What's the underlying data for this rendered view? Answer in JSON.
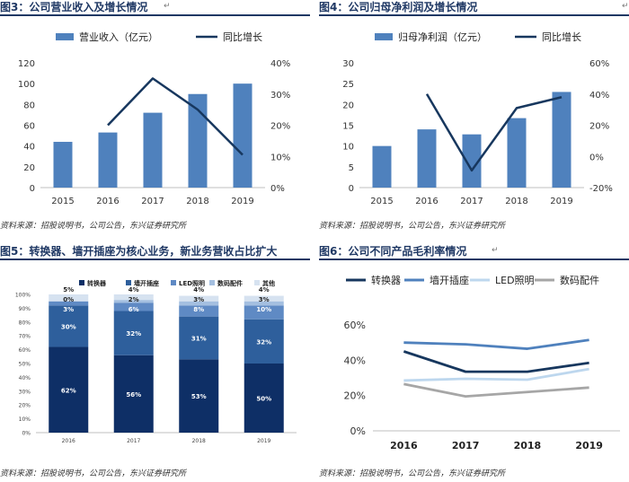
{
  "return_mark": "↵",
  "colors": {
    "title": "#1f3864",
    "bar": "#4f81bd",
    "line_dark": "#17375e",
    "stack": [
      "#0e2f66",
      "#2e5f9c",
      "#5f8ac4",
      "#a4bfe0",
      "#d6e2f0"
    ],
    "g_conv": "#17375e",
    "g_socket": "#4f81bd",
    "g_led": "#bdd7ee",
    "g_digital": "#a6a6a6"
  },
  "charts": {
    "fig3": {
      "title": "图3：公司营业收入及增长情况",
      "source": "资料来源：招股说明书，公司公告，东兴证券研究所",
      "legend_bar": "营业收入（亿元）",
      "legend_line": "同比增长",
      "left_ticks": [
        "0",
        "20",
        "40",
        "60",
        "80",
        "100",
        "120"
      ],
      "right_ticks": [
        "0%",
        "10%",
        "20%",
        "30%",
        "40%"
      ]
    },
    "fig4": {
      "title": "图4：公司归母净利润及增长情况",
      "source": "资料来源：招股说明书，公司公告，东兴证券研究所",
      "legend_bar": "归母净利润（亿元）",
      "legend_line": "同比增长",
      "left_ticks": [
        "0",
        "5",
        "10",
        "15",
        "20",
        "25",
        "30"
      ],
      "right_ticks": [
        "-20%",
        "0%",
        "20%",
        "40%",
        "60%"
      ]
    },
    "fig5": {
      "title": "图5：转换器、墙开插座为核心业务，新业务营收占比扩大",
      "source": "资料来源：招股说明书，公司公告，东兴证券研究所",
      "left_ticks": [
        "0%",
        "10%",
        "20%",
        "30%",
        "40%",
        "50%",
        "60%",
        "70%",
        "80%",
        "90%",
        "100%"
      ],
      "legend": [
        "转换器",
        "墙开插座",
        "LED照明",
        "数码配件",
        "其他"
      ]
    },
    "fig6": {
      "title": "图6：公司不同产品毛利率情况",
      "source": "资料来源：招股说明书，公司公告，东兴证券研究所",
      "left_ticks": [
        "0%",
        "20%",
        "40%",
        "60%"
      ],
      "legend": [
        "转换器",
        "墙开插座",
        "LED照明",
        "数码配件"
      ]
    }
  },
  "chart_data": [
    {
      "id": "fig3",
      "type": "bar",
      "title": "图3：公司营业收入及增长情况",
      "categories": [
        "2015",
        "2016",
        "2017",
        "2018",
        "2019"
      ],
      "series": [
        {
          "name": "营业收入（亿元）",
          "type": "bar",
          "axis": "left",
          "values": [
            44,
            53,
            72,
            90,
            100
          ]
        },
        {
          "name": "同比增长",
          "type": "line",
          "axis": "right",
          "values": [
            null,
            0.2,
            0.35,
            0.25,
            0.105
          ]
        }
      ],
      "ylim_left": [
        0,
        120
      ],
      "ylim_right": [
        0,
        0.4
      ]
    },
    {
      "id": "fig4",
      "type": "bar",
      "title": "图4：公司归母净利润及增长情况",
      "categories": [
        "2015",
        "2016",
        "2017",
        "2018",
        "2019"
      ],
      "series": [
        {
          "name": "归母净利润（亿元）",
          "type": "bar",
          "axis": "left",
          "values": [
            10,
            14,
            12.8,
            16.7,
            23
          ]
        },
        {
          "name": "同比增长",
          "type": "line",
          "axis": "right",
          "values": [
            null,
            0.4,
            -0.09,
            0.31,
            0.38
          ]
        }
      ],
      "ylim_left": [
        0,
        30
      ],
      "ylim_right": [
        -0.2,
        0.6
      ]
    },
    {
      "id": "fig5",
      "type": "bar",
      "stacked": true,
      "title": "图5：转换器、墙开插座为核心业务，新业务营收占比扩大",
      "categories": [
        "2016",
        "2017",
        "2018",
        "2019"
      ],
      "series": [
        {
          "name": "转换器",
          "values": [
            62,
            56,
            53,
            50
          ],
          "labels": [
            "62%",
            "56%",
            "53%",
            "50%"
          ]
        },
        {
          "name": "墙开插座",
          "values": [
            30,
            32,
            31,
            32
          ],
          "labels": [
            "30%",
            "32%",
            "31%",
            "32%"
          ]
        },
        {
          "name": "LED照明",
          "values": [
            3,
            6,
            8,
            10
          ],
          "labels": [
            "3%",
            "6%",
            "8%",
            "10%"
          ]
        },
        {
          "name": "数码配件",
          "values": [
            0,
            2,
            3,
            3
          ],
          "labels": [
            "0%",
            "2%",
            "3%",
            "3%"
          ]
        },
        {
          "name": "其他",
          "values": [
            5,
            4,
            4,
            4
          ],
          "labels": [
            "5%",
            "4%",
            "4%",
            "4%"
          ]
        }
      ],
      "ylim": [
        0,
        100
      ]
    },
    {
      "id": "fig6",
      "type": "line",
      "title": "图6：公司不同产品毛利率情况",
      "categories": [
        "2016",
        "2017",
        "2018",
        "2019"
      ],
      "series": [
        {
          "name": "转换器",
          "values": [
            0.45,
            0.335,
            0.335,
            0.385
          ]
        },
        {
          "name": "墙开插座",
          "values": [
            0.5,
            0.49,
            0.465,
            0.515
          ]
        },
        {
          "name": "LED照明",
          "values": [
            0.285,
            0.295,
            0.29,
            0.35
          ]
        },
        {
          "name": "数码配件",
          "values": [
            0.265,
            0.195,
            0.22,
            0.245
          ]
        }
      ],
      "ylim": [
        0,
        0.6
      ]
    }
  ]
}
